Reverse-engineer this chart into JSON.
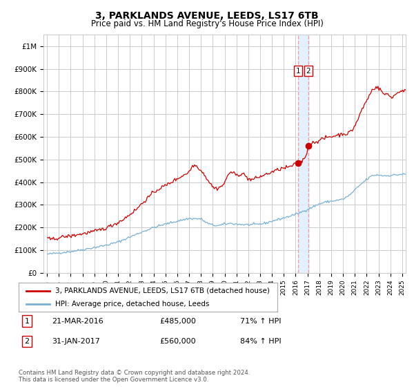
{
  "title": "3, PARKLANDS AVENUE, LEEDS, LS17 6TB",
  "subtitle": "Price paid vs. HM Land Registry's House Price Index (HPI)",
  "footer": "Contains HM Land Registry data © Crown copyright and database right 2024.\nThis data is licensed under the Open Government Licence v3.0.",
  "legend_entry1": "3, PARKLANDS AVENUE, LEEDS, LS17 6TB (detached house)",
  "legend_entry2": "HPI: Average price, detached house, Leeds",
  "annotation1_label": "1",
  "annotation1_date": "21-MAR-2016",
  "annotation1_price": "£485,000",
  "annotation1_hpi": "71% ↑ HPI",
  "annotation2_label": "2",
  "annotation2_date": "31-JAN-2017",
  "annotation2_price": "£560,000",
  "annotation2_hpi": "84% ↑ HPI",
  "red_color": "#cc0000",
  "blue_color": "#7ab0d4",
  "annotation_box_color": "#cc0000",
  "vline_color": "#f5a0a0",
  "highlight_color": "#ddeeff",
  "grid_color": "#cccccc",
  "ylim": [
    0,
    1050000
  ],
  "yticks": [
    0,
    100000,
    200000,
    300000,
    400000,
    500000,
    600000,
    700000,
    800000,
    900000,
    1000000
  ],
  "ytick_labels": [
    "£0",
    "£100K",
    "£200K",
    "£300K",
    "£400K",
    "£500K",
    "£600K",
    "£700K",
    "£800K",
    "£900K",
    "£1M"
  ],
  "point1_x": 2016.22,
  "point1_y": 485000,
  "point2_x": 2017.08,
  "point2_y": 560000,
  "vline1_x": 2016.22,
  "vline2_x": 2017.08,
  "xlim_start": 1994.7,
  "xlim_end": 2025.3,
  "xtick_years": [
    1995,
    1996,
    1997,
    1998,
    1999,
    2000,
    2001,
    2002,
    2003,
    2004,
    2005,
    2006,
    2007,
    2008,
    2009,
    2010,
    2011,
    2012,
    2013,
    2014,
    2015,
    2016,
    2017,
    2018,
    2019,
    2020,
    2021,
    2022,
    2023,
    2024,
    2025
  ]
}
